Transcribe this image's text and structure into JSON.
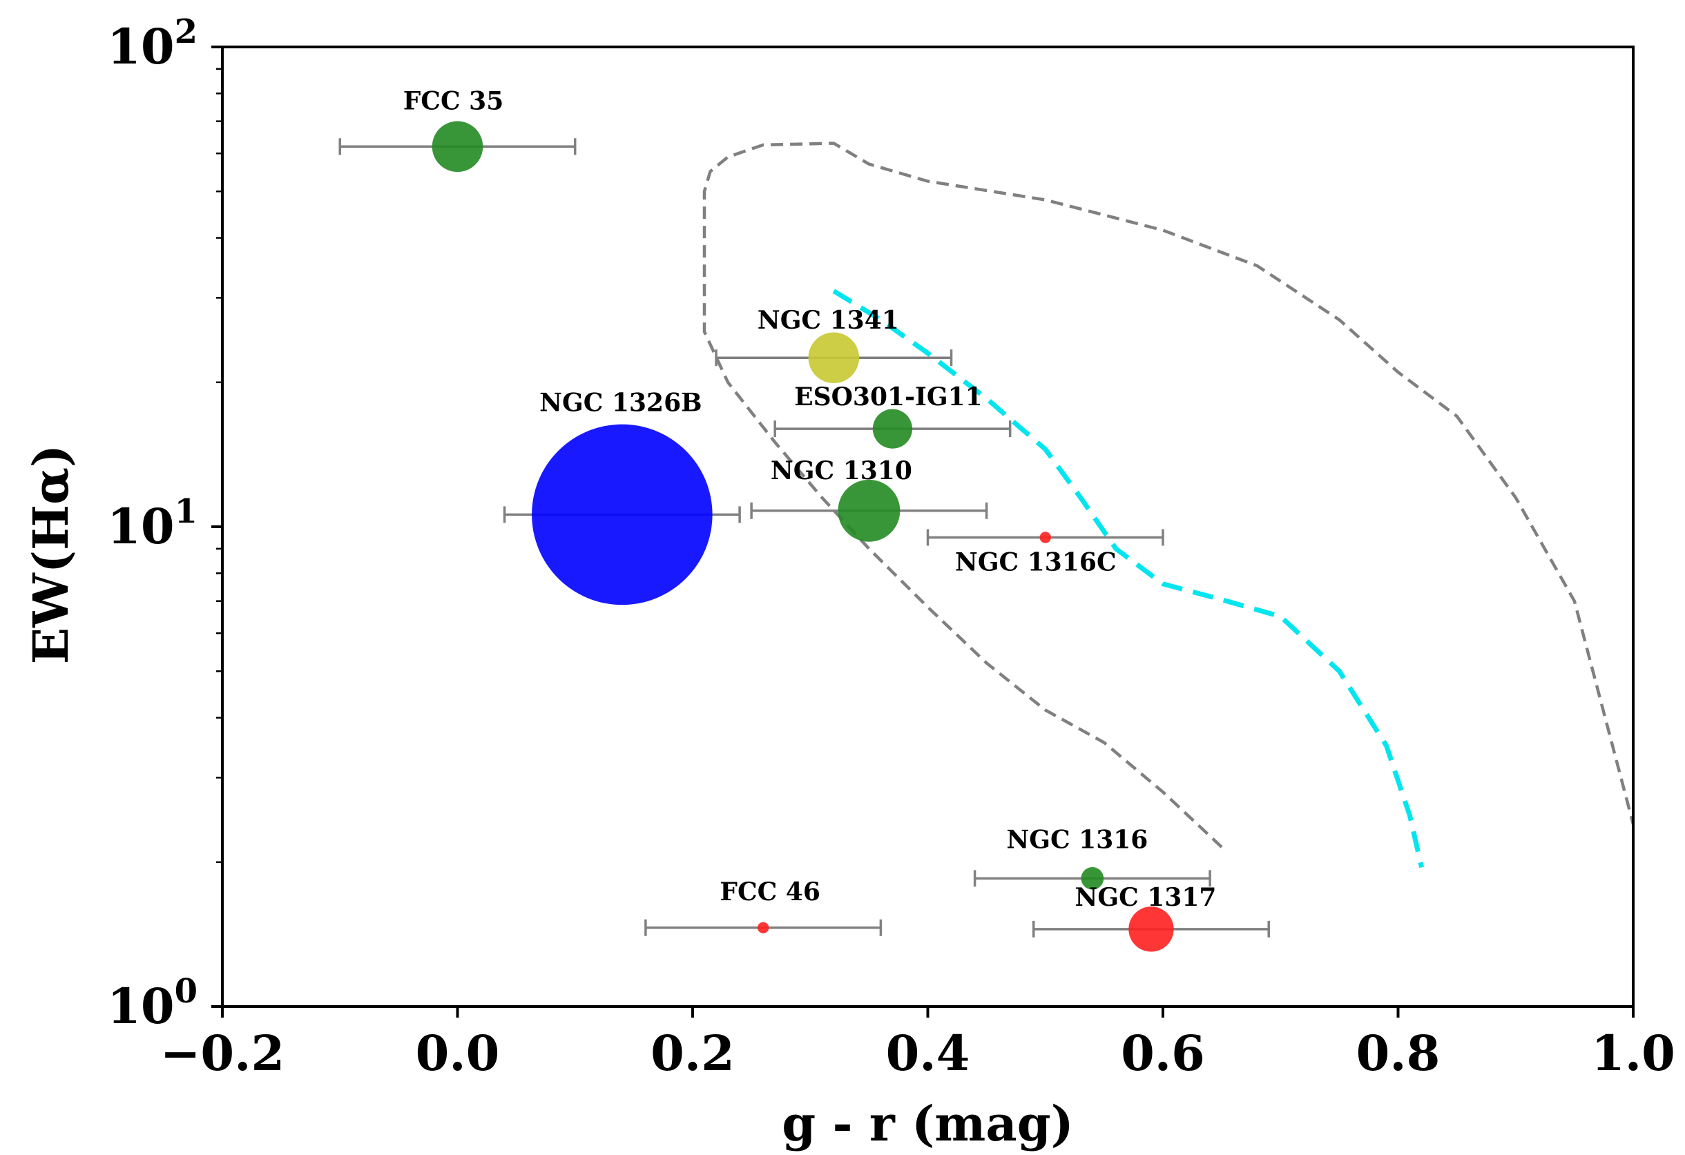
{
  "chart_data": {
    "type": "scatter",
    "title": "",
    "xlabel": "g - r (mag)",
    "ylabel": "EW(Hα)",
    "xlim": [
      -0.2,
      1.0
    ],
    "ylim": [
      1,
      100
    ],
    "yscale": "log",
    "grid": false,
    "x_ticks": [
      {
        "value": -0.2,
        "label": "−0.2"
      },
      {
        "value": 0.0,
        "label": "0.0"
      },
      {
        "value": 0.2,
        "label": "0.2"
      },
      {
        "value": 0.4,
        "label": "0.4"
      },
      {
        "value": 0.6,
        "label": "0.6"
      },
      {
        "value": 0.8,
        "label": "0.8"
      },
      {
        "value": 1.0,
        "label": "1.0"
      }
    ],
    "y_ticks": [
      {
        "value": 1,
        "base": "10",
        "exp": "0"
      },
      {
        "value": 10,
        "base": "10",
        "exp": "1"
      },
      {
        "value": 100,
        "base": "10",
        "exp": "2"
      }
    ],
    "points": [
      {
        "label": "FCC 35",
        "x": 0.0,
        "y": 62,
        "xerr": 0.1,
        "color": "#228B22",
        "size": 0.045
      },
      {
        "label": "NGC 1341",
        "x": 0.32,
        "y": 22.5,
        "xerr": 0.1,
        "color": "#c8c832",
        "size": 0.045
      },
      {
        "label": "ESO301-IG11",
        "x": 0.37,
        "y": 16,
        "xerr": 0.1,
        "color": "#228B22",
        "size": 0.035
      },
      {
        "label": "NGC 1326B",
        "x": 0.14,
        "y": 10.6,
        "xerr": 0.1,
        "color": "#0000ff",
        "size": 0.16
      },
      {
        "label": "NGC 1310",
        "x": 0.35,
        "y": 10.8,
        "xerr": 0.1,
        "color": "#228B22",
        "size": 0.055
      },
      {
        "label": "NGC 1316C",
        "x": 0.5,
        "y": 9.5,
        "xerr": 0.1,
        "color": "#ff2020",
        "size": 0.01
      },
      {
        "label": "NGC 1316",
        "x": 0.54,
        "y": 1.85,
        "xerr": 0.1,
        "color": "#228B22",
        "size": 0.02
      },
      {
        "label": "FCC 46",
        "x": 0.26,
        "y": 1.46,
        "xerr": 0.1,
        "color": "#ff2020",
        "size": 0.01
      },
      {
        "label": "NGC 1317",
        "x": 0.59,
        "y": 1.45,
        "xerr": 0.1,
        "color": "#ff2020",
        "size": 0.04
      }
    ],
    "contours": [
      {
        "style": "dashed",
        "color": "#808080",
        "x": [
          0.65,
          0.6,
          0.55,
          0.5,
          0.45,
          0.4,
          0.35,
          0.31,
          0.27,
          0.23,
          0.21,
          0.21,
          0.215,
          0.23,
          0.26,
          0.32,
          0.35,
          0.4,
          0.5,
          0.6,
          0.68,
          0.75,
          0.8,
          0.85,
          0.9,
          0.95,
          1.0
        ],
        "y": [
          2.15,
          2.8,
          3.55,
          4.15,
          5.2,
          6.8,
          9.0,
          11.5,
          15.0,
          20.0,
          25.5,
          50.0,
          55.0,
          59.0,
          62.5,
          63.0,
          57.0,
          52.5,
          48.0,
          41.5,
          35.0,
          27.0,
          21.0,
          17.0,
          11.5,
          7.0,
          2.4
        ]
      },
      {
        "style": "dashed",
        "color": "#00e5ee",
        "x": [
          0.32,
          0.36,
          0.4,
          0.45,
          0.5,
          0.53,
          0.56,
          0.6,
          0.65,
          0.7,
          0.75,
          0.79,
          0.81,
          0.82
        ],
        "y": [
          31.0,
          27.0,
          23.0,
          18.5,
          14.5,
          11.5,
          9.0,
          7.6,
          7.05,
          6.5,
          5.0,
          3.5,
          2.5,
          1.95
        ]
      }
    ]
  }
}
